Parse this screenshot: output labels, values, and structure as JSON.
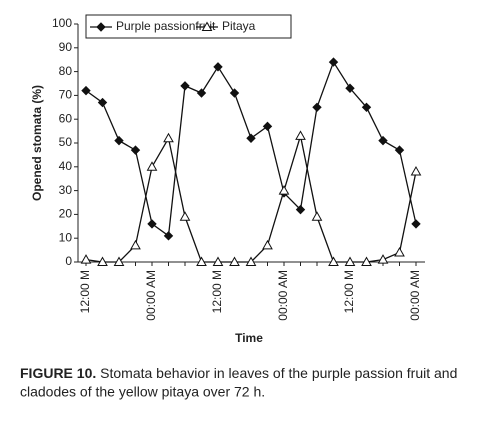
{
  "chart_data": {
    "type": "line",
    "y_label": "Opened stomata (%)",
    "x_label": "Time",
    "categories": [
      "12:00 M",
      null,
      null,
      null,
      "00:00 AM",
      null,
      null,
      null,
      "12:00 M",
      null,
      null,
      null,
      "00:00 AM",
      null,
      null,
      null,
      "12:00 M",
      null,
      null,
      null,
      "00:00 AM"
    ],
    "series": [
      {
        "name": "Purple passionfruit",
        "color": "#111111",
        "marker": "diamond",
        "values": [
          72,
          67,
          51,
          47,
          16,
          11,
          74,
          71,
          82,
          71,
          52,
          57,
          29,
          22,
          65,
          84,
          73,
          65,
          51,
          47,
          16
        ]
      },
      {
        "name": "Pitaya",
        "color": "#111111",
        "marker": "triangle",
        "values": [
          1,
          0,
          0,
          7,
          40,
          52,
          19,
          0,
          0,
          0,
          0,
          7,
          30,
          53,
          19,
          0,
          0,
          0,
          1,
          4,
          38
        ]
      }
    ],
    "ylim": [
      0,
      100
    ],
    "yticks": [
      0,
      10,
      20,
      30,
      40,
      50,
      60,
      70,
      80,
      90,
      100
    ],
    "legend": "top"
  },
  "caption": {
    "label": "FIGURE 10.",
    "text": " Stomata behavior in leaves of the purple passion fruit and",
    "text2": "cladodes of the yellow pitaya over 72 h."
  }
}
